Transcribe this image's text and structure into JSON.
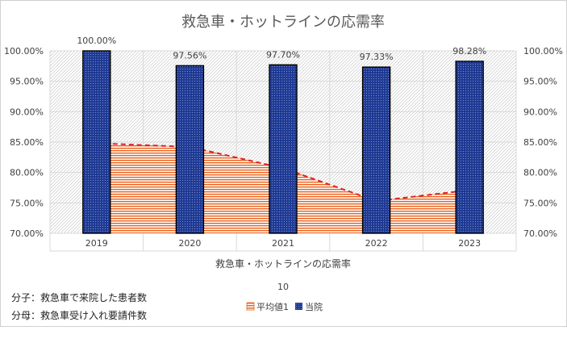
{
  "chart_data": {
    "type": "bar",
    "title": "救急車・ホットラインの応需率",
    "xlabel": "救急車・ホットラインの応需率",
    "x_sublabel": "10",
    "categories": [
      "2019",
      "2020",
      "2021",
      "2022",
      "2023"
    ],
    "ylim": [
      0.7,
      1.0
    ],
    "yticks": [
      "100.00%",
      "95.00%",
      "90.00%",
      "85.00%",
      "80.00%",
      "75.00%",
      "70.00%"
    ],
    "series": [
      {
        "name": "当院",
        "type": "bar",
        "values": [
          100.0,
          97.56,
          97.7,
          97.33,
          98.28
        ],
        "labels": [
          "100.00%",
          "97.56%",
          "97.70%",
          "97.33%",
          "98.28%"
        ],
        "color": "#1f3a93"
      },
      {
        "name": "平均値1",
        "type": "area",
        "values": [
          84.8,
          84.2,
          80.7,
          75.3,
          77.1
        ],
        "color": "#e8601c"
      }
    ],
    "legend": "bottom-center",
    "grid": true
  },
  "notes": {
    "numerator": "分子：救急車で来院した患者数",
    "denominator": "分母：救急車受け入れ要請件数"
  }
}
